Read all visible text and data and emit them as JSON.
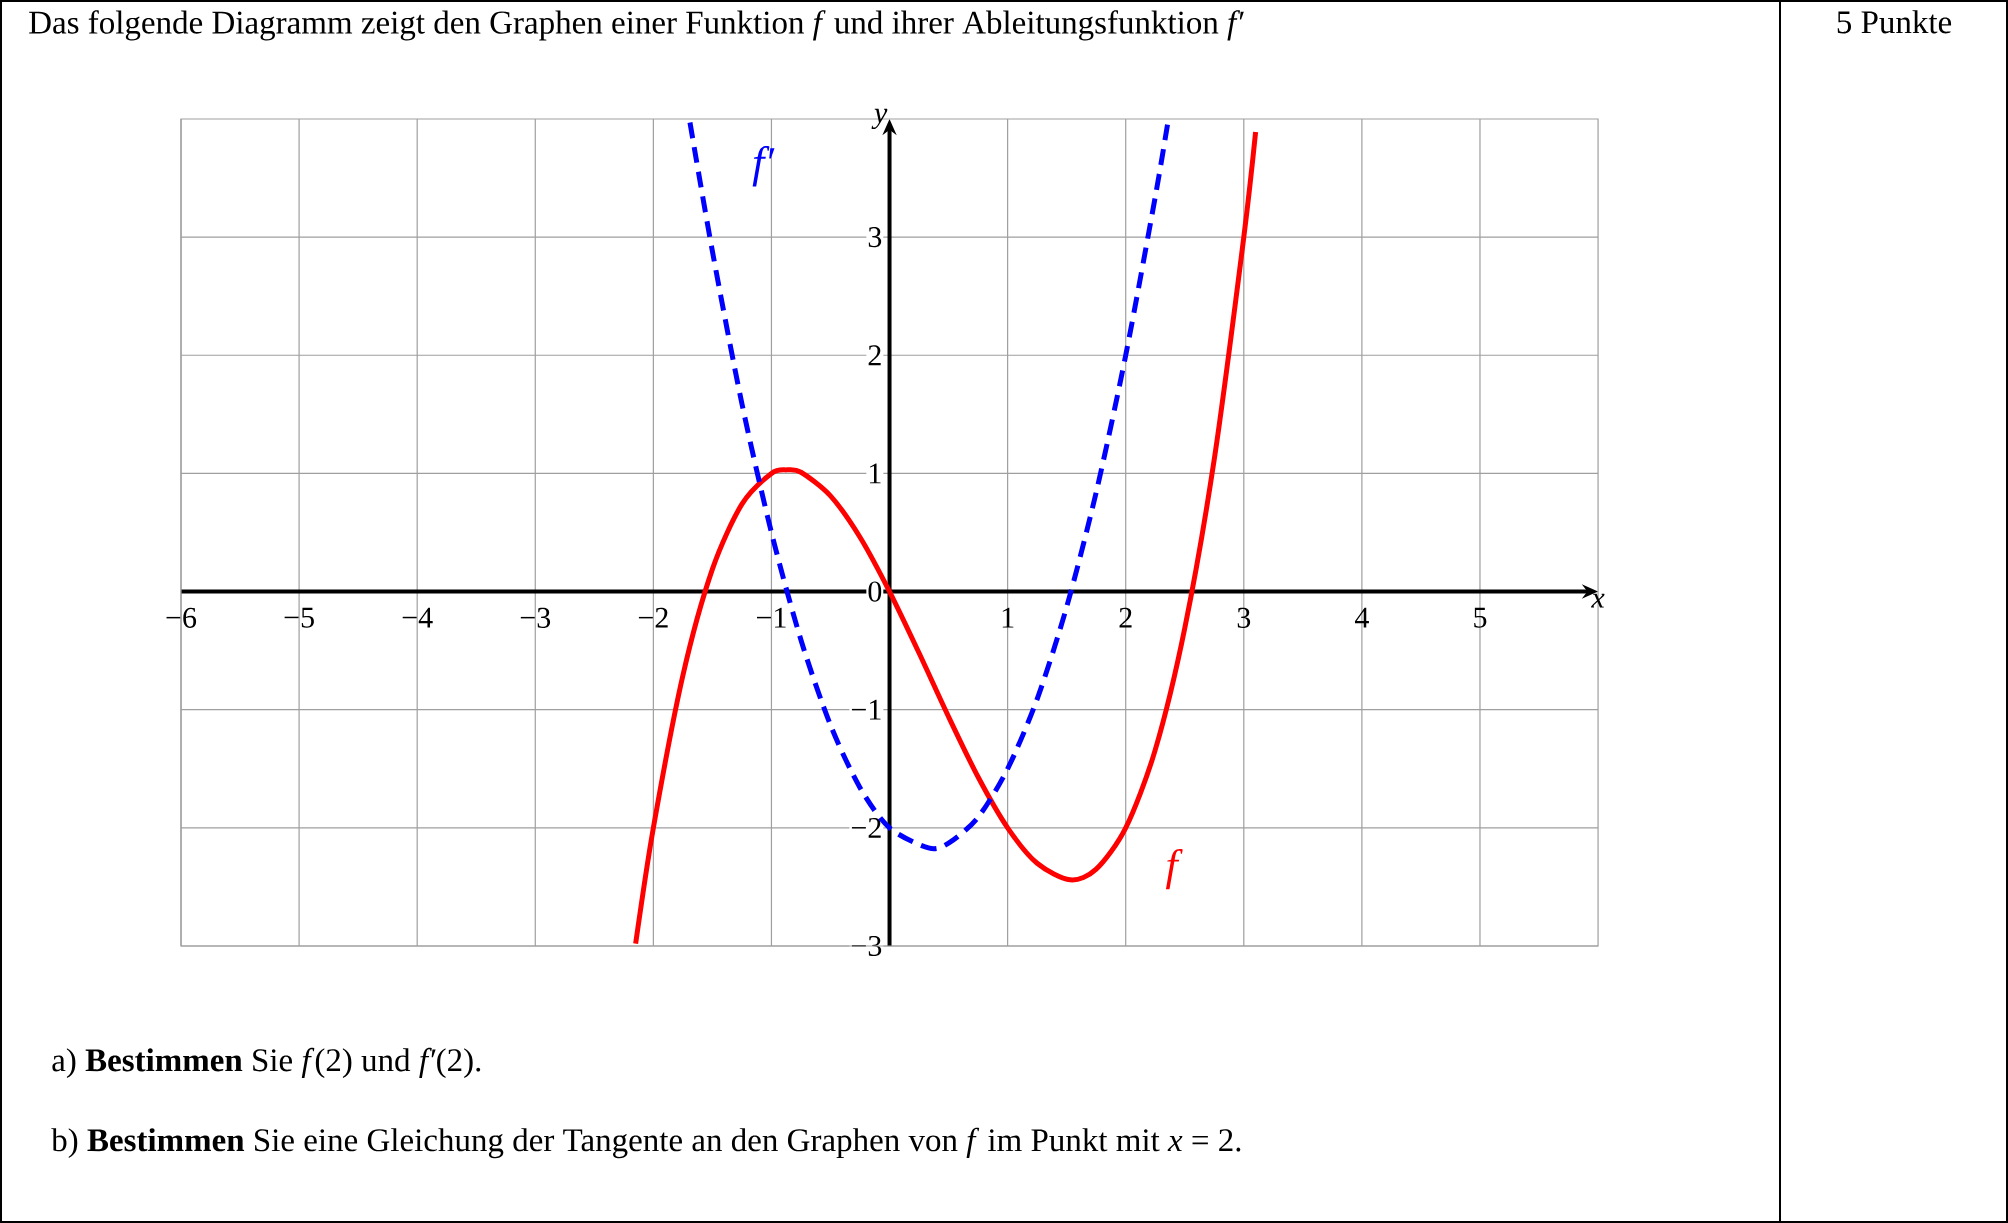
{
  "chart_data": {
    "type": "line",
    "title": "Das folgende Diagramm zeigt den Graphen einer Funktion *f* und ihrer Ableitungsfunktion *f′*",
    "xlabel": "x",
    "ylabel": "y",
    "xlim": [
      -6,
      6
    ],
    "ylim": [
      -3,
      4
    ],
    "xticks": [
      {
        "value": -6,
        "label": "−6"
      },
      {
        "value": -5,
        "label": "−5"
      },
      {
        "value": -4,
        "label": "−4"
      },
      {
        "value": -3,
        "label": "−3"
      },
      {
        "value": -2,
        "label": "−2"
      },
      {
        "value": -1,
        "label": "−1"
      },
      1,
      2,
      3,
      4,
      5
    ],
    "yticks": [
      {
        "value": -3,
        "label": "−3"
      },
      {
        "value": -2,
        "label": "−2"
      },
      {
        "value": -1,
        "label": "−1"
      },
      0,
      1,
      2,
      3
    ],
    "grid": true,
    "series": [
      {
        "name": "f",
        "color": "#ff0000",
        "line_style": "solid",
        "x": [
          -2.15,
          -2,
          -1.75,
          -1.5,
          -1.25,
          -1,
          -0.87,
          -0.75,
          -0.5,
          -0.25,
          0,
          0.25,
          0.5,
          0.75,
          1,
          1.25,
          1.53,
          1.75,
          2,
          2.25,
          2.5,
          2.75,
          3,
          3.1
        ],
        "values": [
          -2.98,
          -2,
          -0.71,
          0.19,
          0.74,
          1,
          1.03,
          1.01,
          0.81,
          0.46,
          0,
          -0.52,
          -1.06,
          -1.57,
          -2,
          -2.3,
          -2.44,
          -2.35,
          -2,
          -1.34,
          -0.31,
          1.12,
          3,
          3.89
        ]
      },
      {
        "name": "f′",
        "color": "#0000ff",
        "line_style": "dashed",
        "x": [
          -1.69,
          -1.5,
          -1.25,
          -1,
          -0.75,
          -0.5,
          -0.25,
          0,
          0.33,
          0.5,
          0.75,
          1,
          1.25,
          1.5,
          1.75,
          2,
          2.25,
          2.36
        ],
        "values": [
          3.97,
          2.88,
          1.59,
          0.5,
          -0.41,
          -1.13,
          -1.66,
          -2,
          -2.17,
          -2.13,
          -1.91,
          -1.5,
          -0.91,
          -0.13,
          0.84,
          2,
          3.34,
          3.99
        ]
      }
    ],
    "annotations": [
      "5 Punkte",
      "a)  **Bestimmen** Sie *f*(2) und *f′*(2).",
      "b)  **Bestimmen** Sie eine Gleichung der Tangente an den Graphen von *f* im Punkt mit *x* = 2."
    ]
  }
}
